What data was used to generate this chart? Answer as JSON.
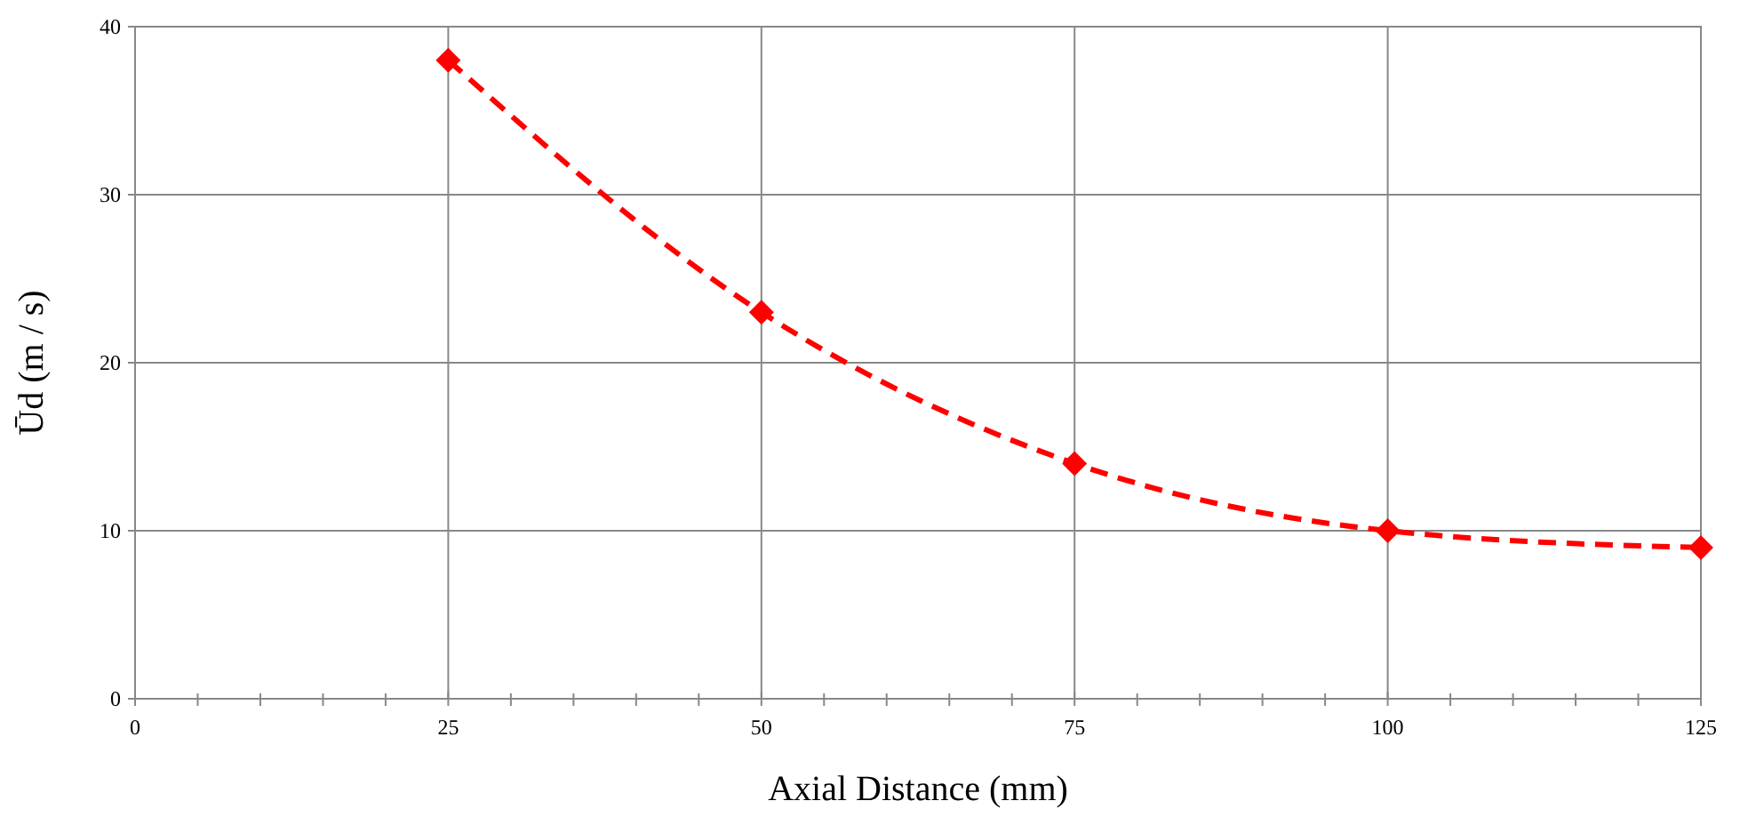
{
  "chart_data": {
    "type": "line",
    "xlabel": "Axial Distance (mm)",
    "ylabel": "Ūd (m / s)",
    "x": [
      25,
      50,
      75,
      100,
      125
    ],
    "series": [
      {
        "color": "#ff0000",
        "values": [
          38,
          23,
          14,
          10,
          9
        ]
      }
    ],
    "marker": "diamond",
    "line_style": "dashed",
    "grid": true,
    "xlim": [
      0,
      125
    ],
    "xticks": [
      0,
      {
        "value": 5,
        "label": null
      },
      {
        "value": 10,
        "label": null
      },
      {
        "value": 15,
        "label": null
      },
      {
        "value": 20,
        "label": null
      },
      25,
      {
        "value": 30,
        "label": null
      },
      {
        "value": 35,
        "label": null
      },
      {
        "value": 40,
        "label": null
      },
      {
        "value": 45,
        "label": null
      },
      50,
      {
        "value": 55,
        "label": null
      },
      {
        "value": 60,
        "label": null
      },
      {
        "value": 65,
        "label": null
      },
      {
        "value": 70,
        "label": null
      },
      75,
      {
        "value": 80,
        "label": null
      },
      {
        "value": 85,
        "label": null
      },
      {
        "value": 90,
        "label": null
      },
      {
        "value": 95,
        "label": null
      },
      100,
      {
        "value": 105,
        "label": null
      },
      {
        "value": 110,
        "label": null
      },
      {
        "value": 115,
        "label": null
      },
      {
        "value": 120,
        "label": null
      },
      125
    ],
    "ylim": [
      0,
      40
    ],
    "yticks": [
      0,
      10,
      20,
      30,
      40
    ]
  }
}
